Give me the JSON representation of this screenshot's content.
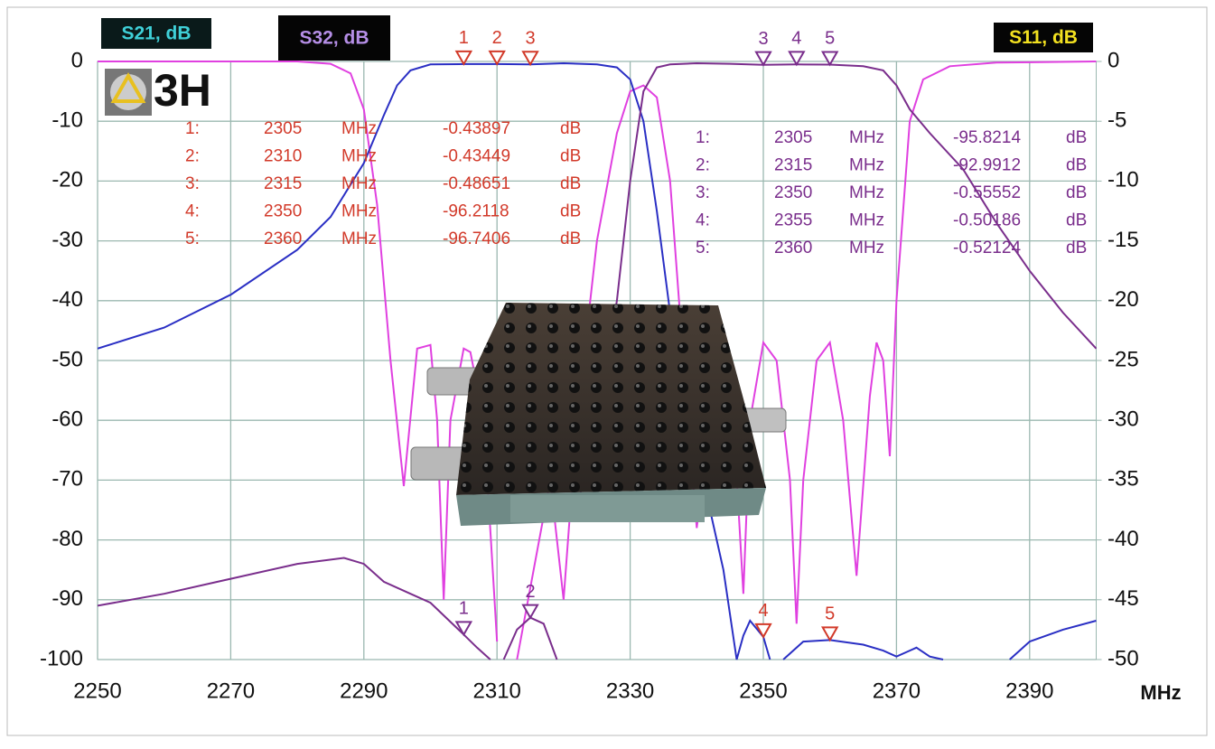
{
  "chart_data": {
    "type": "line",
    "logo": "3H",
    "xlabel": "MHz",
    "value_unit": "dB",
    "xlim": [
      2250,
      2400
    ],
    "xticks": [
      2250,
      2270,
      2290,
      2310,
      2330,
      2350,
      2370,
      2390
    ],
    "ylim": [
      -100,
      0
    ],
    "yticks": [
      0,
      -10,
      -20,
      -30,
      -40,
      -50,
      -60,
      -70,
      -80,
      -90,
      -100
    ],
    "y2lim": [
      -50,
      0
    ],
    "y2ticks": [
      0,
      -5,
      -10,
      -15,
      -20,
      -25,
      -30,
      -35,
      -40,
      -45,
      -50
    ],
    "grid": true,
    "series": [
      {
        "name": "S21, dB",
        "color": "#2a2fc4",
        "label_color": "#3fd0d8",
        "marker_color": "#d23a2a",
        "x": [
          2250,
          2260,
          2270,
          2280,
          2285,
          2290,
          2293,
          2295,
          2297,
          2300,
          2305,
          2310,
          2315,
          2320,
          2325,
          2328,
          2330,
          2332,
          2334,
          2336,
          2338,
          2340,
          2342,
          2344,
          2346,
          2347,
          2348,
          2350,
          2351,
          2352,
          2353,
          2356,
          2360,
          2365,
          2368,
          2370,
          2372,
          2373,
          2375,
          2377,
          2386,
          2387,
          2390,
          2395,
          2400
        ],
        "values": [
          -48,
          -44.5,
          -39,
          -31.5,
          -26,
          -17,
          -9,
          -4,
          -1.5,
          -0.5,
          -0.43897,
          -0.43449,
          -0.48651,
          -0.3,
          -0.5,
          -1,
          -3,
          -10,
          -25,
          -42,
          -55,
          -65,
          -75,
          -85,
          -100,
          -96,
          -93.5,
          -96.2118,
          -100,
          null,
          -100,
          -97,
          -96.7406,
          -97.5,
          -98.5,
          -99.5,
          -98.5,
          -98,
          -99.5,
          -100,
          null,
          -100,
          -97,
          -95,
          -93.5
        ],
        "markers": [
          {
            "number": "1",
            "label": "1:",
            "x": 2305,
            "value": -0.43897
          },
          {
            "number": "2",
            "label": "2:",
            "x": 2310,
            "value": -0.43449
          },
          {
            "number": "3",
            "label": "3:",
            "x": 2315,
            "value": -0.48651
          },
          {
            "number": "4",
            "label": "4:",
            "x": 2350,
            "value": -96.2118
          },
          {
            "number": "5",
            "label": "5:",
            "x": 2360,
            "value": -96.7406
          }
        ]
      },
      {
        "name": "S32, dB",
        "color": "#7a2e8c",
        "label_color": "#b58ee6",
        "marker_color": "#7a2e8c",
        "x": [
          2250,
          2260,
          2270,
          2280,
          2287,
          2290,
          2293,
          2297,
          2300,
          2305,
          2307,
          2309,
          2310,
          2311,
          2313,
          2315,
          2317,
          2319,
          2320,
          2322,
          2325,
          2328,
          2330,
          2332,
          2334,
          2336,
          2340,
          2345,
          2350,
          2355,
          2360,
          2365,
          2368,
          2370,
          2372,
          2375,
          2380,
          2385,
          2390,
          2395,
          2400
        ],
        "values": [
          -91,
          -89,
          -86.5,
          -84,
          -83,
          -84,
          -87,
          -89,
          -90.5,
          -95.8214,
          -98,
          -100,
          null,
          -100,
          -95,
          -92.9912,
          -94,
          -100,
          null,
          -75,
          -60,
          -40,
          -20,
          -5,
          -1,
          -0.5,
          -0.3,
          -0.4,
          -0.55552,
          -0.50186,
          -0.52124,
          -0.8,
          -1.5,
          -4,
          -8,
          -12,
          -18,
          -27,
          -35,
          -42,
          -48
        ],
        "markers": [
          {
            "number": "1",
            "label": "1:",
            "x": 2305,
            "value": -95.8214
          },
          {
            "number": "2",
            "label": "2:",
            "x": 2315,
            "value": -92.9912
          },
          {
            "number": "3",
            "label": "3:",
            "x": 2350,
            "value": -0.55552
          },
          {
            "number": "4",
            "label": "4:",
            "x": 2355,
            "value": -0.50186
          },
          {
            "number": "5",
            "label": "5:",
            "x": 2360,
            "value": -0.52124
          }
        ]
      },
      {
        "name": "S11, dB",
        "color": "#e040e0",
        "label_color": "#f2e020",
        "axis": "y2",
        "x": [
          2250,
          2280,
          2285,
          2288,
          2290,
          2292,
          2294,
          2296,
          2298,
          2300,
          2301,
          2302,
          2303,
          2305,
          2306,
          2308,
          2310,
          2311,
          2313,
          2318,
          2320,
          2322,
          2325,
          2328,
          2330,
          2332,
          2334,
          2336,
          2338,
          2340,
          2342,
          2345,
          2347,
          2348,
          2350,
          2352,
          2354,
          2355,
          2356,
          2358,
          2360,
          2362,
          2364,
          2366,
          2367,
          2368,
          2369,
          2370,
          2372,
          2374,
          2378,
          2385,
          2400
        ],
        "values": [
          0,
          0,
          -0.2,
          -1,
          -4,
          -12,
          -25,
          -35.5,
          -24,
          -23.7,
          -30,
          -45,
          -30,
          -24,
          -24.3,
          -30,
          -48.5,
          null,
          -50,
          -35,
          -45,
          -30,
          -15,
          -6,
          -2.5,
          -2,
          -3,
          -10,
          -25,
          -39,
          -30,
          -25,
          -44.5,
          -30,
          -23.5,
          -25,
          -35,
          -47,
          -35,
          -25,
          -23.5,
          -30,
          -43,
          -28,
          -23.5,
          -25,
          -33,
          -20,
          -5,
          -1.5,
          -0.4,
          -0.1,
          0
        ]
      }
    ]
  }
}
